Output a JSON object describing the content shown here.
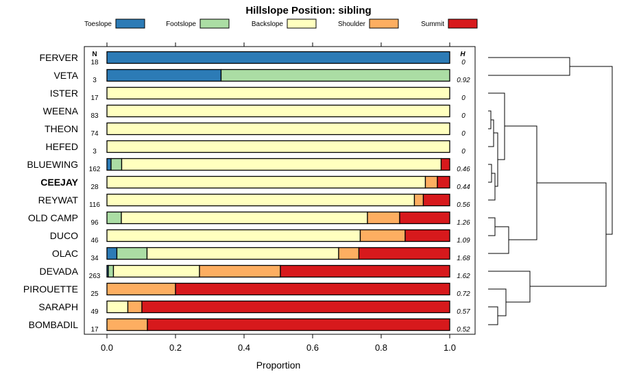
{
  "chart_data": {
    "type": "stacked-bar-horizontal",
    "title": "Hillslope Position: sibling",
    "xlabel": "Proportion",
    "xlim": [
      0,
      1
    ],
    "xticks": [
      "0.0",
      "0.2",
      "0.4",
      "0.6",
      "0.8",
      "1.0"
    ],
    "n_header": "N",
    "h_header": "H",
    "categories": [
      "Toeslope",
      "Footslope",
      "Backslope",
      "Shoulder",
      "Summit"
    ],
    "colors": [
      "#2c7bb6",
      "#abdda4",
      "#ffffbf",
      "#fdae61",
      "#d7191c"
    ],
    "rows": [
      {
        "name": "FERVER",
        "n": "18",
        "h": "0",
        "values": [
          1.0,
          0,
          0,
          0,
          0
        ],
        "bold": false
      },
      {
        "name": "VETA",
        "n": "3",
        "h": "0.92",
        "values": [
          0.333,
          0.667,
          0,
          0,
          0
        ],
        "bold": false
      },
      {
        "name": "ISTER",
        "n": "17",
        "h": "0",
        "values": [
          0,
          0,
          1.0,
          0,
          0
        ],
        "bold": false
      },
      {
        "name": "WEENA",
        "n": "83",
        "h": "0",
        "values": [
          0,
          0,
          1.0,
          0,
          0
        ],
        "bold": false
      },
      {
        "name": "THEON",
        "n": "74",
        "h": "0",
        "values": [
          0,
          0,
          1.0,
          0,
          0
        ],
        "bold": false
      },
      {
        "name": "HEFED",
        "n": "3",
        "h": "0",
        "values": [
          0,
          0,
          1.0,
          0,
          0
        ],
        "bold": false
      },
      {
        "name": "BLUEWING",
        "n": "162",
        "h": "0.46",
        "values": [
          0.012,
          0.031,
          0.932,
          0,
          0.025
        ],
        "bold": false
      },
      {
        "name": "CEEJAY",
        "n": "28",
        "h": "0.44",
        "values": [
          0,
          0,
          0.929,
          0.035,
          0.036
        ],
        "bold": true
      },
      {
        "name": "REYWAT",
        "n": "116",
        "h": "0.56",
        "values": [
          0,
          0,
          0.897,
          0.026,
          0.077
        ],
        "bold": false
      },
      {
        "name": "OLD CAMP",
        "n": "96",
        "h": "1.26",
        "values": [
          0,
          0.042,
          0.718,
          0.094,
          0.146
        ],
        "bold": false
      },
      {
        "name": "DUCO",
        "n": "46",
        "h": "1.09",
        "values": [
          0,
          0,
          0.739,
          0.131,
          0.13
        ],
        "bold": false
      },
      {
        "name": "OLAC",
        "n": "34",
        "h": "1.68",
        "values": [
          0.029,
          0.088,
          0.559,
          0.059,
          0.265
        ],
        "bold": false
      },
      {
        "name": "DEVADA",
        "n": "263",
        "h": "1.62",
        "values": [
          0.004,
          0.015,
          0.251,
          0.236,
          0.494
        ],
        "bold": false
      },
      {
        "name": "PIROUETTE",
        "n": "25",
        "h": "0.72",
        "values": [
          0,
          0,
          0,
          0.2,
          0.8
        ],
        "bold": false
      },
      {
        "name": "SARAPH",
        "n": "49",
        "h": "0.57",
        "values": [
          0,
          0,
          0.061,
          0.041,
          0.898
        ],
        "bold": false
      },
      {
        "name": "BOMBADIL",
        "n": "17",
        "h": "0.52",
        "values": [
          0,
          0,
          0,
          0.118,
          0.882
        ],
        "bold": false
      }
    ]
  }
}
